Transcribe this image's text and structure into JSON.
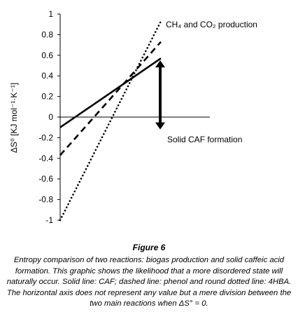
{
  "chart_data": {
    "type": "line",
    "title": "",
    "xlabel": "",
    "ylabel": "ΔS⁰ [KJ mol⁻¹·K⁻¹]",
    "ylim": [
      -1,
      1
    ],
    "yticks": [
      1,
      0.8,
      0.6,
      0.4,
      0.2,
      0,
      -0.2,
      -0.4,
      -0.6,
      -0.8,
      -1
    ],
    "ytick_labels": [
      "1",
      "0.8",
      "0.6",
      "0.4",
      "0.2",
      "0",
      "-0.2",
      "-0.4",
      "-0.6",
      "-0.8",
      "-1"
    ],
    "x": [
      0,
      1
    ],
    "grid": false,
    "legend": "none",
    "series": [
      {
        "key": "caf",
        "style": "solid",
        "values": [
          -0.1,
          0.57
        ]
      },
      {
        "key": "phenol",
        "style": "dashed",
        "values": [
          -0.37,
          0.73
        ]
      },
      {
        "key": "hba",
        "style": "dotted",
        "values": [
          -1.0,
          0.93
        ]
      }
    ],
    "annotations": {
      "upper_label": "CH₄ and CO₂ production",
      "lower_label": "Solid CAF formation"
    }
  },
  "caption": {
    "title": "Figure 6",
    "body": "Entropy comparison of two reactions: biogas production and solid caffeic acid formation. This graphic shows the likelihood that a more disordered state will naturally occur. Solid line: CAF; dashed line: phenol and round dotted line: 4HBA. The horizontal axis does not represent any value but a mere division between the two main reactions when ΔS° = 0."
  },
  "colors": {
    "ink": "#000000",
    "background": "#ffffff"
  }
}
